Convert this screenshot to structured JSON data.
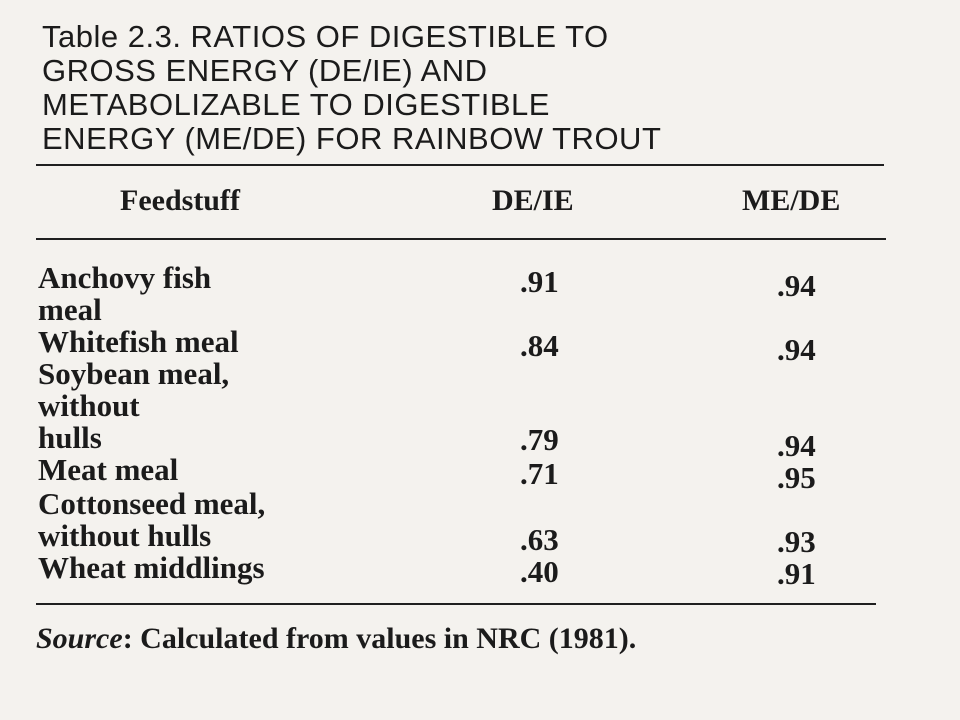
{
  "table": {
    "title": "Table 2.3.  RATIOS OF DIGESTIBLE TO\nGROSS ENERGY (DE/IE) AND\nMETABOLIZABLE TO DIGESTIBLE\nENERGY (ME/DE) FOR RAINBOW TROUT",
    "columns": [
      "Feedstuff",
      "DE/IE",
      "ME/DE"
    ],
    "rows": [
      {
        "feedstuff": "Anchovy fish\n    meal",
        "de_ie": ".91",
        "me_de": ".94"
      },
      {
        "feedstuff": "Whitefish meal",
        "de_ie": ".84",
        "me_de": ".94"
      },
      {
        "feedstuff": "Soybean meal,\n    without\n    hulls",
        "de_ie": ".79",
        "me_de": ".94"
      },
      {
        "feedstuff": "Meat meal",
        "de_ie": ".71",
        "me_de": ".95"
      },
      {
        "feedstuff": "Cottonseed meal,\n    without hulls",
        "de_ie": ".63",
        "me_de": ".93"
      },
      {
        "feedstuff": "Wheat middlings",
        "de_ie": ".40",
        "me_de": ".91"
      }
    ],
    "source_label": "Source",
    "source_text": ": Calculated from values in NRC (1981)."
  }
}
